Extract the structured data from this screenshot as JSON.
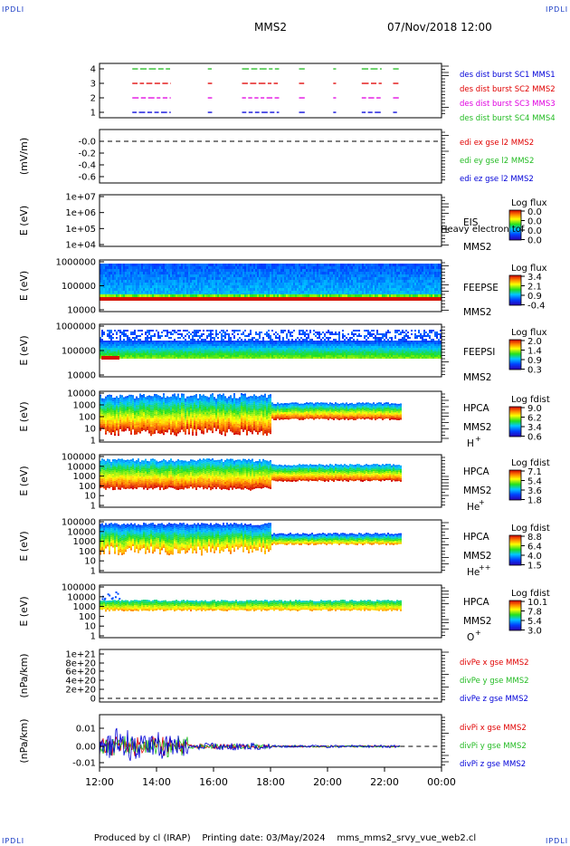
{
  "corner_label": "IPDLI",
  "header": {
    "spacecraft": "MMS2",
    "datetime": "07/Nov/2018 12:00"
  },
  "footer": {
    "producer": "Produced by cl (IRAP)",
    "printing_date": "Printing date: 03/May/2024",
    "filename": "mms_mms2_srvy_vue_web2.cl"
  },
  "colors": {
    "blue": "#0000d8",
    "red": "#e00000",
    "magenta": "#e000e0",
    "green": "#22bb22"
  },
  "chart_data": {
    "type": "heatmap",
    "x": {
      "ticks": [
        "12:00",
        "14:00",
        "16:00",
        "18:00",
        "20:00",
        "22:00",
        "00:00"
      ],
      "range_hours": [
        12,
        24
      ]
    },
    "panels": [
      {
        "id": "burst",
        "type": "scatter",
        "yticks": [
          "4",
          "3",
          "2",
          "1"
        ],
        "legend": [
          {
            "text": "des dist burst SC1 MMS1",
            "color": "#0000d8"
          },
          {
            "text": "des dist burst SC2 MMS2",
            "color": "#e00000"
          },
          {
            "text": "des dist burst SC3 MMS3",
            "color": "#e000e0"
          },
          {
            "text": "des dist burst SC4 MMS4",
            "color": "#22bb22"
          }
        ],
        "intervals_hours": [
          [
            13.15,
            14.5
          ],
          [
            15.8,
            15.95
          ],
          [
            17.0,
            18.3
          ],
          [
            19.0,
            19.2
          ],
          [
            20.2,
            20.3
          ],
          [
            21.2,
            21.9
          ],
          [
            22.3,
            22.5
          ]
        ]
      },
      {
        "id": "edi",
        "type": "line",
        "ylabel": "(mV/m)",
        "yticks": [
          "-0.0",
          "-0.2",
          "-0.4",
          "-0.6"
        ],
        "legend": [
          {
            "text": "edi ex gse l2 MMS2",
            "color": "#e00000"
          },
          {
            "text": "edi ey gse l2 MMS2",
            "color": "#22bb22"
          },
          {
            "text": "edi ez gse l2 MMS2",
            "color": "#0000d8"
          }
        ]
      },
      {
        "id": "eis",
        "type": "heatmap",
        "ylabel": "E (eV)",
        "yticks": [
          "1e+07",
          "1e+06",
          "1e+05",
          "1e+04"
        ],
        "instrument": "EIS",
        "spacecraft": "MMS2",
        "extra_label": "Heavy electron tof",
        "colorbar": {
          "title": "Log flux",
          "ticks": [
            "0.0",
            "0.0",
            "0.0",
            "0.0"
          ]
        }
      },
      {
        "id": "feepse",
        "type": "heatmap",
        "ylabel": "E (eV)",
        "yticks": [
          "1000000",
          "100000",
          "10000"
        ],
        "instrument": "FEEPSE",
        "spacecraft": "MMS2",
        "colorbar": {
          "title": "Log flux",
          "ticks": [
            "3.4",
            "2.1",
            "0.9",
            "-0.4"
          ]
        }
      },
      {
        "id": "feepsi",
        "type": "heatmap",
        "ylabel": "E (eV)",
        "yticks": [
          "1000000",
          "100000",
          "10000"
        ],
        "instrument": "FEEPSI",
        "spacecraft": "MMS2",
        "colorbar": {
          "title": "Log flux",
          "ticks": [
            "2.0",
            "1.4",
            "0.9",
            "0.3"
          ]
        }
      },
      {
        "id": "hpca_h",
        "type": "heatmap",
        "ylabel": "E (eV)",
        "yticks": [
          "10000",
          "1000",
          "100",
          "10",
          "1"
        ],
        "instrument": "HPCA",
        "spacecraft": "MMS2",
        "species": "H",
        "charge": "+",
        "colorbar": {
          "title": "Log fdist",
          "ticks": [
            "9.0",
            "6.2",
            "3.4",
            "0.6"
          ]
        }
      },
      {
        "id": "hpca_he",
        "type": "heatmap",
        "ylabel": "E (eV)",
        "yticks": [
          "100000",
          "10000",
          "1000",
          "100",
          "10",
          "1"
        ],
        "instrument": "HPCA",
        "spacecraft": "MMS2",
        "species": "He",
        "charge": "+",
        "colorbar": {
          "title": "Log fdist",
          "ticks": [
            "7.1",
            "5.4",
            "3.6",
            "1.8"
          ]
        }
      },
      {
        "id": "hpca_he2",
        "type": "heatmap",
        "ylabel": "E (eV)",
        "yticks": [
          "100000",
          "10000",
          "1000",
          "100",
          "10",
          "1"
        ],
        "instrument": "HPCA",
        "spacecraft": "MMS2",
        "species": "He",
        "charge": "++",
        "colorbar": {
          "title": "Log fdist",
          "ticks": [
            "8.8",
            "6.4",
            "4.0",
            "1.5"
          ]
        }
      },
      {
        "id": "hpca_o",
        "type": "heatmap",
        "ylabel": "E (eV)",
        "yticks": [
          "100000",
          "10000",
          "1000",
          "100",
          "10",
          "1"
        ],
        "instrument": "HPCA",
        "spacecraft": "MMS2",
        "species": "O",
        "charge": "+",
        "colorbar": {
          "title": "Log fdist",
          "ticks": [
            "10.1",
            "7.8",
            "5.4",
            "3.0"
          ]
        }
      },
      {
        "id": "divpe",
        "type": "line",
        "ylabel": "(nPa/km)",
        "yticks": [
          "1e+21",
          "8e+20",
          "6e+20",
          "4e+20",
          "2e+20",
          "0"
        ],
        "legend": [
          {
            "text": "divPe x gse MMS2",
            "color": "#e00000"
          },
          {
            "text": "divPe y gse MMS2",
            "color": "#22bb22"
          },
          {
            "text": "divPe z gse MMS2",
            "color": "#0000d8"
          }
        ]
      },
      {
        "id": "divpi",
        "type": "line",
        "ylabel": "(nPa/km)",
        "yticks": [
          "0.01",
          "0.00",
          "-0.01"
        ],
        "legend": [
          {
            "text": "divPi x gse MMS2",
            "color": "#e00000"
          },
          {
            "text": "divPi y gse MMS2",
            "color": "#22bb22"
          },
          {
            "text": "divPi z gse MMS2",
            "color": "#0000d8"
          }
        ]
      }
    ]
  }
}
